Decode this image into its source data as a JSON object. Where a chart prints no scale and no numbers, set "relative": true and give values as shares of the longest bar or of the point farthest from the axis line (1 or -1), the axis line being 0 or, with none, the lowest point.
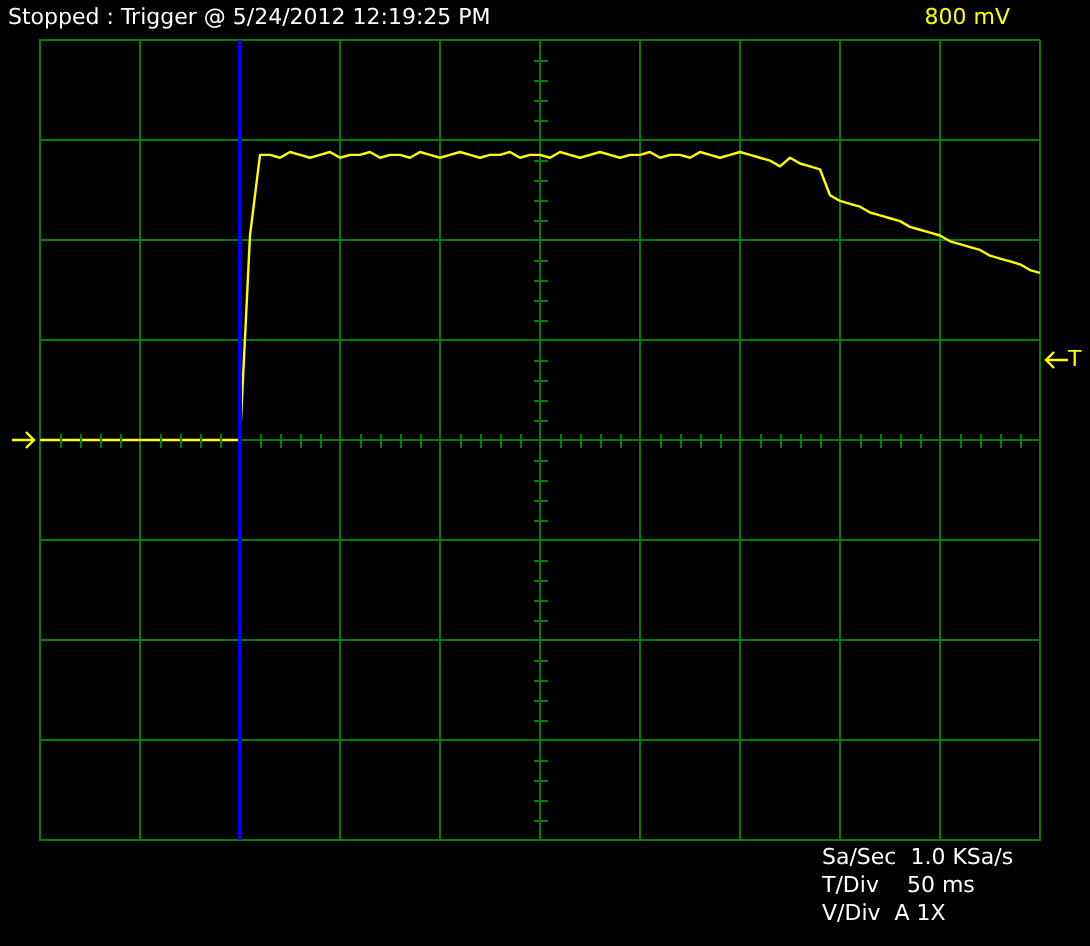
{
  "chart_data": {
    "type": "line",
    "title": "Stopped : Trigger @ 5/24/2012 12:19:25 PM",
    "annotations": [
      "800 mV",
      "Sa/Sec  1.0 KSa/s",
      "T/Div    50 ms",
      "V/Div  A 1X",
      "T"
    ],
    "relative": true,
    "categories": [
      null,
      null,
      null,
      null,
      null,
      null,
      null,
      null,
      null,
      null,
      null,
      null,
      null,
      null,
      null,
      null,
      null,
      null,
      null,
      null,
      null,
      null,
      null,
      null,
      null,
      null,
      null,
      null,
      null,
      null,
      null,
      null,
      null,
      null,
      null,
      null,
      null,
      null,
      null,
      null,
      null,
      null,
      null,
      null,
      null,
      null,
      null,
      null,
      null,
      null,
      null,
      null,
      null,
      null,
      null,
      null,
      null,
      null,
      null,
      null,
      null,
      null,
      null,
      null,
      null,
      null,
      null,
      null,
      null,
      null,
      null,
      null,
      null,
      null,
      null,
      null,
      null,
      null,
      null,
      null,
      null,
      null,
      null,
      null,
      null,
      null,
      null,
      null,
      null,
      null,
      null,
      null,
      null,
      null,
      null,
      null,
      null,
      null,
      null,
      null,
      null
    ],
    "series": [
      {
        "color": "#ffff00",
        "values": [
          0,
          0,
          0,
          0,
          0,
          0,
          0,
          0,
          0,
          0,
          0,
          0,
          0,
          0,
          0,
          0,
          0,
          0,
          0,
          0,
          0,
          0.71,
          0.99,
          0.99,
          0.98,
          1,
          0.99,
          0.98,
          0.99,
          1,
          0.98,
          0.99,
          0.99,
          1,
          0.98,
          0.99,
          0.99,
          0.98,
          1,
          0.99,
          0.98,
          0.99,
          1,
          0.99,
          0.98,
          0.99,
          0.99,
          1,
          0.98,
          0.99,
          0.99,
          0.98,
          1,
          0.99,
          0.98,
          0.99,
          1,
          0.99,
          0.98,
          0.99,
          0.99,
          1,
          0.98,
          0.99,
          0.99,
          0.98,
          1,
          0.99,
          0.98,
          0.99,
          1,
          0.99,
          0.98,
          0.97,
          0.95,
          0.98,
          0.96,
          0.95,
          0.94,
          0.85,
          0.83,
          0.82,
          0.81,
          0.79,
          0.78,
          0.77,
          0.76,
          0.74,
          0.73,
          0.72,
          0.71,
          0.69,
          0.68,
          0.67,
          0.66,
          0.64,
          0.63,
          0.62,
          0.61,
          0.59,
          0.58
        ]
      }
    ],
    "grid": true,
    "legend": false,
    "marker": "none",
    "line_style": "solid"
  }
}
